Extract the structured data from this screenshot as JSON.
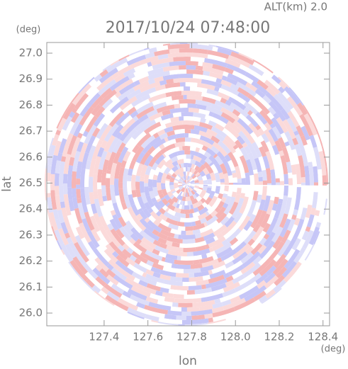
{
  "chart_data": {
    "type": "radar-image",
    "title": "2017/10/24 07:48:00",
    "subtitle": "ALT(km) 2.0",
    "x_label": "lon",
    "y_label": "lat",
    "x_unit": "(deg)",
    "y_unit": "(deg)",
    "xlim": [
      127.138,
      128.43
    ],
    "ylim": [
      25.951,
      27.041
    ],
    "xticks": [
      127.4,
      127.6,
      127.8,
      {
        "value": 128,
        "label": "128.0"
      },
      128.2,
      128.4
    ],
    "yticks": [
      {
        "value": 26,
        "label": "26.0"
      },
      26.1,
      26.2,
      26.3,
      26.4,
      26.5,
      26.6,
      26.7,
      26.8,
      26.9,
      {
        "value": 27,
        "label": "27.0"
      }
    ]
  }
}
